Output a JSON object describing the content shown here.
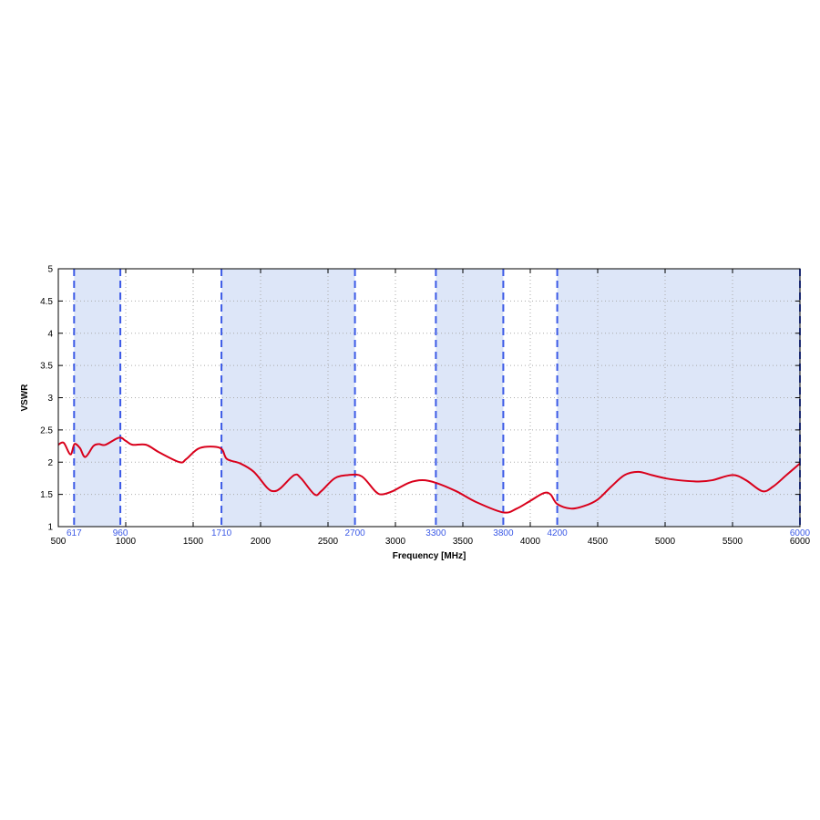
{
  "chart_data": {
    "type": "line",
    "title": "",
    "xlabel": "Frequency [MHz]",
    "ylabel": "VSWR",
    "xlim": [
      500,
      6000
    ],
    "ylim": [
      1,
      5
    ],
    "xticks": [
      500,
      1000,
      1500,
      2000,
      2500,
      3000,
      3500,
      4000,
      4500,
      5000,
      5500,
      6000
    ],
    "yticks": [
      1,
      1.5,
      2,
      2.5,
      3,
      3.5,
      4,
      4.5,
      5
    ],
    "grid": true,
    "bands": [
      [
        617,
        960
      ],
      [
        1710,
        2700
      ],
      [
        3300,
        3800
      ],
      [
        4200,
        6000
      ]
    ],
    "band_markers": [
      617,
      960,
      1710,
      2700,
      3300,
      3800,
      4200,
      6000
    ],
    "colors": {
      "line": "#d9001b",
      "band_fill": "#dde6f8",
      "band_marker": "#3c5ae6",
      "grid": "#aaaaaa"
    },
    "series": [
      {
        "x": [
          500,
          540,
          590,
          620,
          660,
          700,
          760,
          800,
          850,
          950,
          1000,
          1050,
          1150,
          1250,
          1400,
          1450,
          1550,
          1700,
          1750,
          1850,
          1950,
          2050,
          2100,
          2150,
          2250,
          2300,
          2400,
          2450,
          2550,
          2650,
          2750,
          2850,
          2900,
          2980,
          3100,
          3200,
          3300,
          3450,
          3600,
          3800,
          3900,
          4000,
          4100,
          4150,
          4200,
          4300,
          4400,
          4500,
          4600,
          4700,
          4800,
          4900,
          5000,
          5100,
          5250,
          5350,
          5500,
          5600,
          5720,
          5800,
          5900,
          6000
        ],
        "y": [
          2.27,
          2.3,
          2.12,
          2.28,
          2.22,
          2.08,
          2.25,
          2.28,
          2.27,
          2.38,
          2.33,
          2.27,
          2.27,
          2.15,
          2.0,
          2.05,
          2.22,
          2.22,
          2.05,
          1.98,
          1.85,
          1.6,
          1.55,
          1.6,
          1.8,
          1.75,
          1.5,
          1.55,
          1.75,
          1.8,
          1.78,
          1.55,
          1.5,
          1.55,
          1.68,
          1.72,
          1.68,
          1.55,
          1.38,
          1.22,
          1.28,
          1.4,
          1.52,
          1.5,
          1.35,
          1.28,
          1.32,
          1.42,
          1.62,
          1.8,
          1.85,
          1.8,
          1.75,
          1.72,
          1.7,
          1.72,
          1.8,
          1.72,
          1.55,
          1.62,
          1.8,
          1.98
        ]
      }
    ]
  }
}
